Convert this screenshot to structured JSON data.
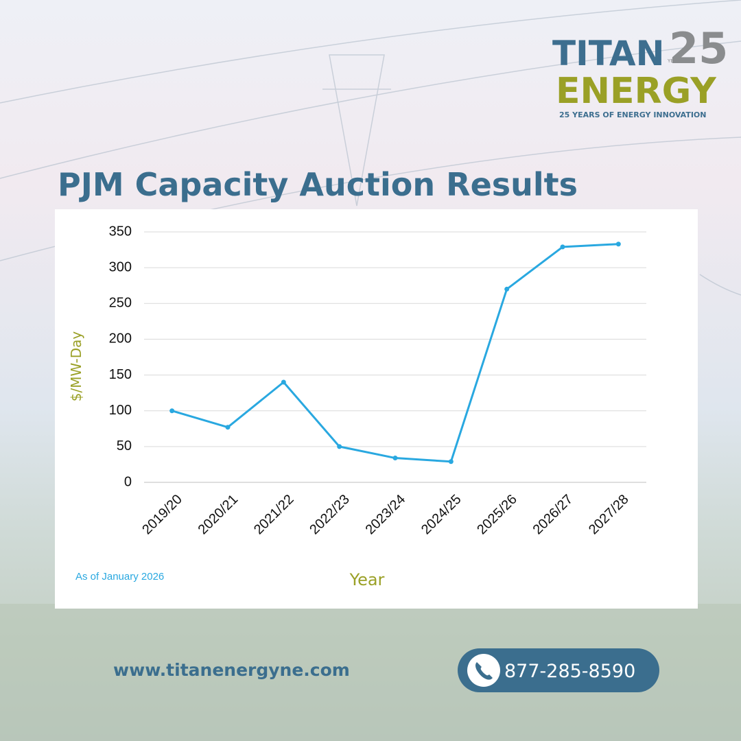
{
  "logo": {
    "name_top": "TITAN",
    "name_bottom": "ENERGY",
    "anniversary": "25",
    "years": "YEARS",
    "tagline": "25 YEARS OF ENERGY INNOVATION"
  },
  "chart_data": {
    "type": "line",
    "title": "PJM Capacity Auction Results",
    "categories": [
      "2019/20",
      "2020/21",
      "2021/22",
      "2022/23",
      "2023/24",
      "2024/25",
      "2025/26",
      "2026/27",
      "2027/28"
    ],
    "values": [
      100,
      77,
      140,
      50,
      34,
      29,
      270,
      329,
      333
    ],
    "color": "#29a8e0",
    "ylim": [
      0,
      350
    ],
    "yticks": [
      0,
      50,
      100,
      150,
      200,
      250,
      300,
      350
    ],
    "grid": true,
    "y_label": "$/MW-Day",
    "x_label": "Year",
    "annotation": "As of January 2026"
  },
  "footer": {
    "website": "www.titanenergyne.com",
    "phone": "877-285-8590"
  }
}
